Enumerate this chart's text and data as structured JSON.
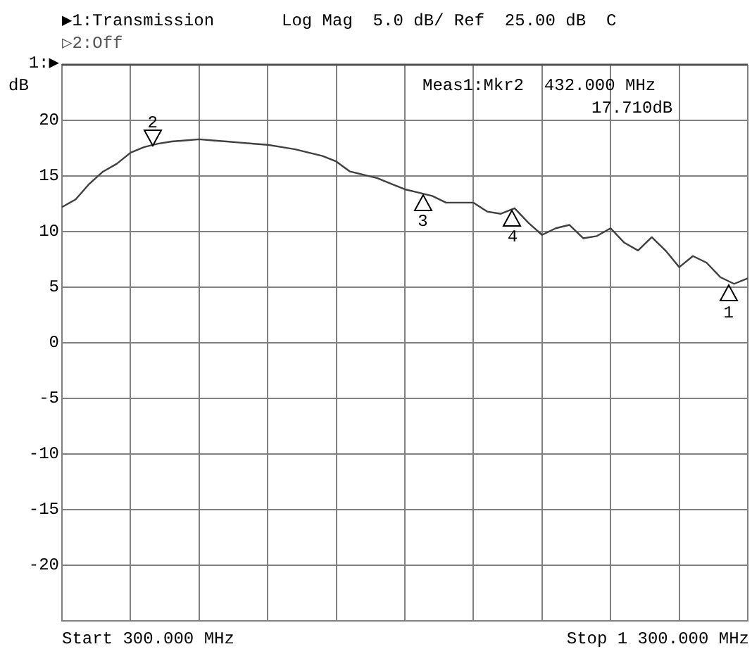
{
  "chart_data": {
    "type": "line",
    "title": "▶1:Transmission",
    "subtitle": "▷2:Off",
    "ylabel": "dB",
    "ref_lines": [
      {
        "axis": "y",
        "value": 25,
        "label": "1:▶",
        "color": "#505050"
      }
    ],
    "annotations": [
      "Log Mag  5.0 dB/ Ref  25.00 dB  C",
      "Meas1:Mkr2  432.000 MHz",
      "17.710dB",
      "Start 300.000 MHz",
      "Stop 1 300.000 MHz",
      {
        "text": "2",
        "y": 17.71
      },
      {
        "text": "3",
        "y": 13.4
      },
      {
        "text": "4",
        "y": 12.0
      },
      {
        "text": "1",
        "y": 5.2
      }
    ],
    "categories": [
      null,
      null,
      null,
      null,
      null,
      null,
      null,
      null,
      null,
      null,
      null,
      null,
      null,
      null,
      null,
      null,
      null,
      null,
      null,
      null,
      null,
      null,
      null,
      null,
      null,
      null,
      null,
      null,
      null,
      null,
      null,
      null,
      null,
      null,
      null,
      null,
      null,
      null,
      null,
      null,
      null,
      null,
      null,
      null,
      null,
      null,
      null,
      null,
      null,
      null,
      null
    ],
    "series": [
      {
        "color": "#404040",
        "values": [
          12.2,
          12.9,
          14.3,
          15.4,
          16.1,
          17.1,
          17.6,
          17.9,
          18.1,
          18.2,
          18.3,
          18.2,
          18.1,
          18.0,
          17.9,
          17.8,
          17.6,
          17.4,
          17.1,
          16.8,
          16.3,
          15.4,
          15.1,
          14.8,
          14.3,
          13.8,
          13.5,
          13.2,
          12.6,
          12.6,
          12.6,
          11.8,
          11.6,
          12.1,
          10.8,
          9.7,
          10.3,
          10.6,
          9.4,
          9.6,
          10.3,
          9.0,
          8.3,
          9.5,
          8.3,
          6.8,
          7.8,
          7.2,
          5.9,
          5.3,
          5.8
        ]
      }
    ],
    "ylim": [
      -25,
      25
    ],
    "yticks": [
      {
        "value": -25,
        "label": null
      },
      -20,
      -15,
      -10,
      -5,
      0,
      5,
      10,
      15,
      20
    ],
    "grid": true,
    "legend": false,
    "tick_labels": "y",
    "marker": "none",
    "line_style": "solid"
  }
}
